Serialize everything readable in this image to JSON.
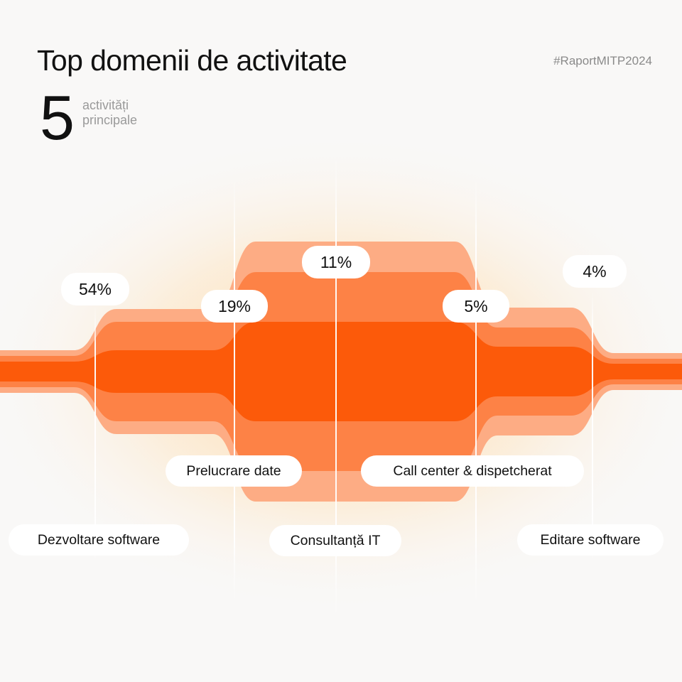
{
  "header": {
    "title": "Top domenii de activitate",
    "hashtag": "#RaportMITP2024",
    "count": "5",
    "count_label_line1": "activități",
    "count_label_line2": "principale"
  },
  "colors": {
    "background": "#f9f8f7",
    "core": "#fc5a0a",
    "middle": "#fd8246",
    "outer": "#fdac84",
    "glow": "#fcd39a"
  },
  "chart_data": {
    "type": "stream",
    "title": "Top domenii de activitate",
    "categories": [
      "Dezvoltare software",
      "Prelucrare date",
      "Consultanță IT",
      "Call center & dispetcherat",
      "Editare software"
    ],
    "values": [
      54,
      19,
      11,
      5,
      4
    ],
    "value_labels": [
      "54%",
      "19%",
      "11%",
      "5%",
      "4%"
    ],
    "unit": "%"
  }
}
